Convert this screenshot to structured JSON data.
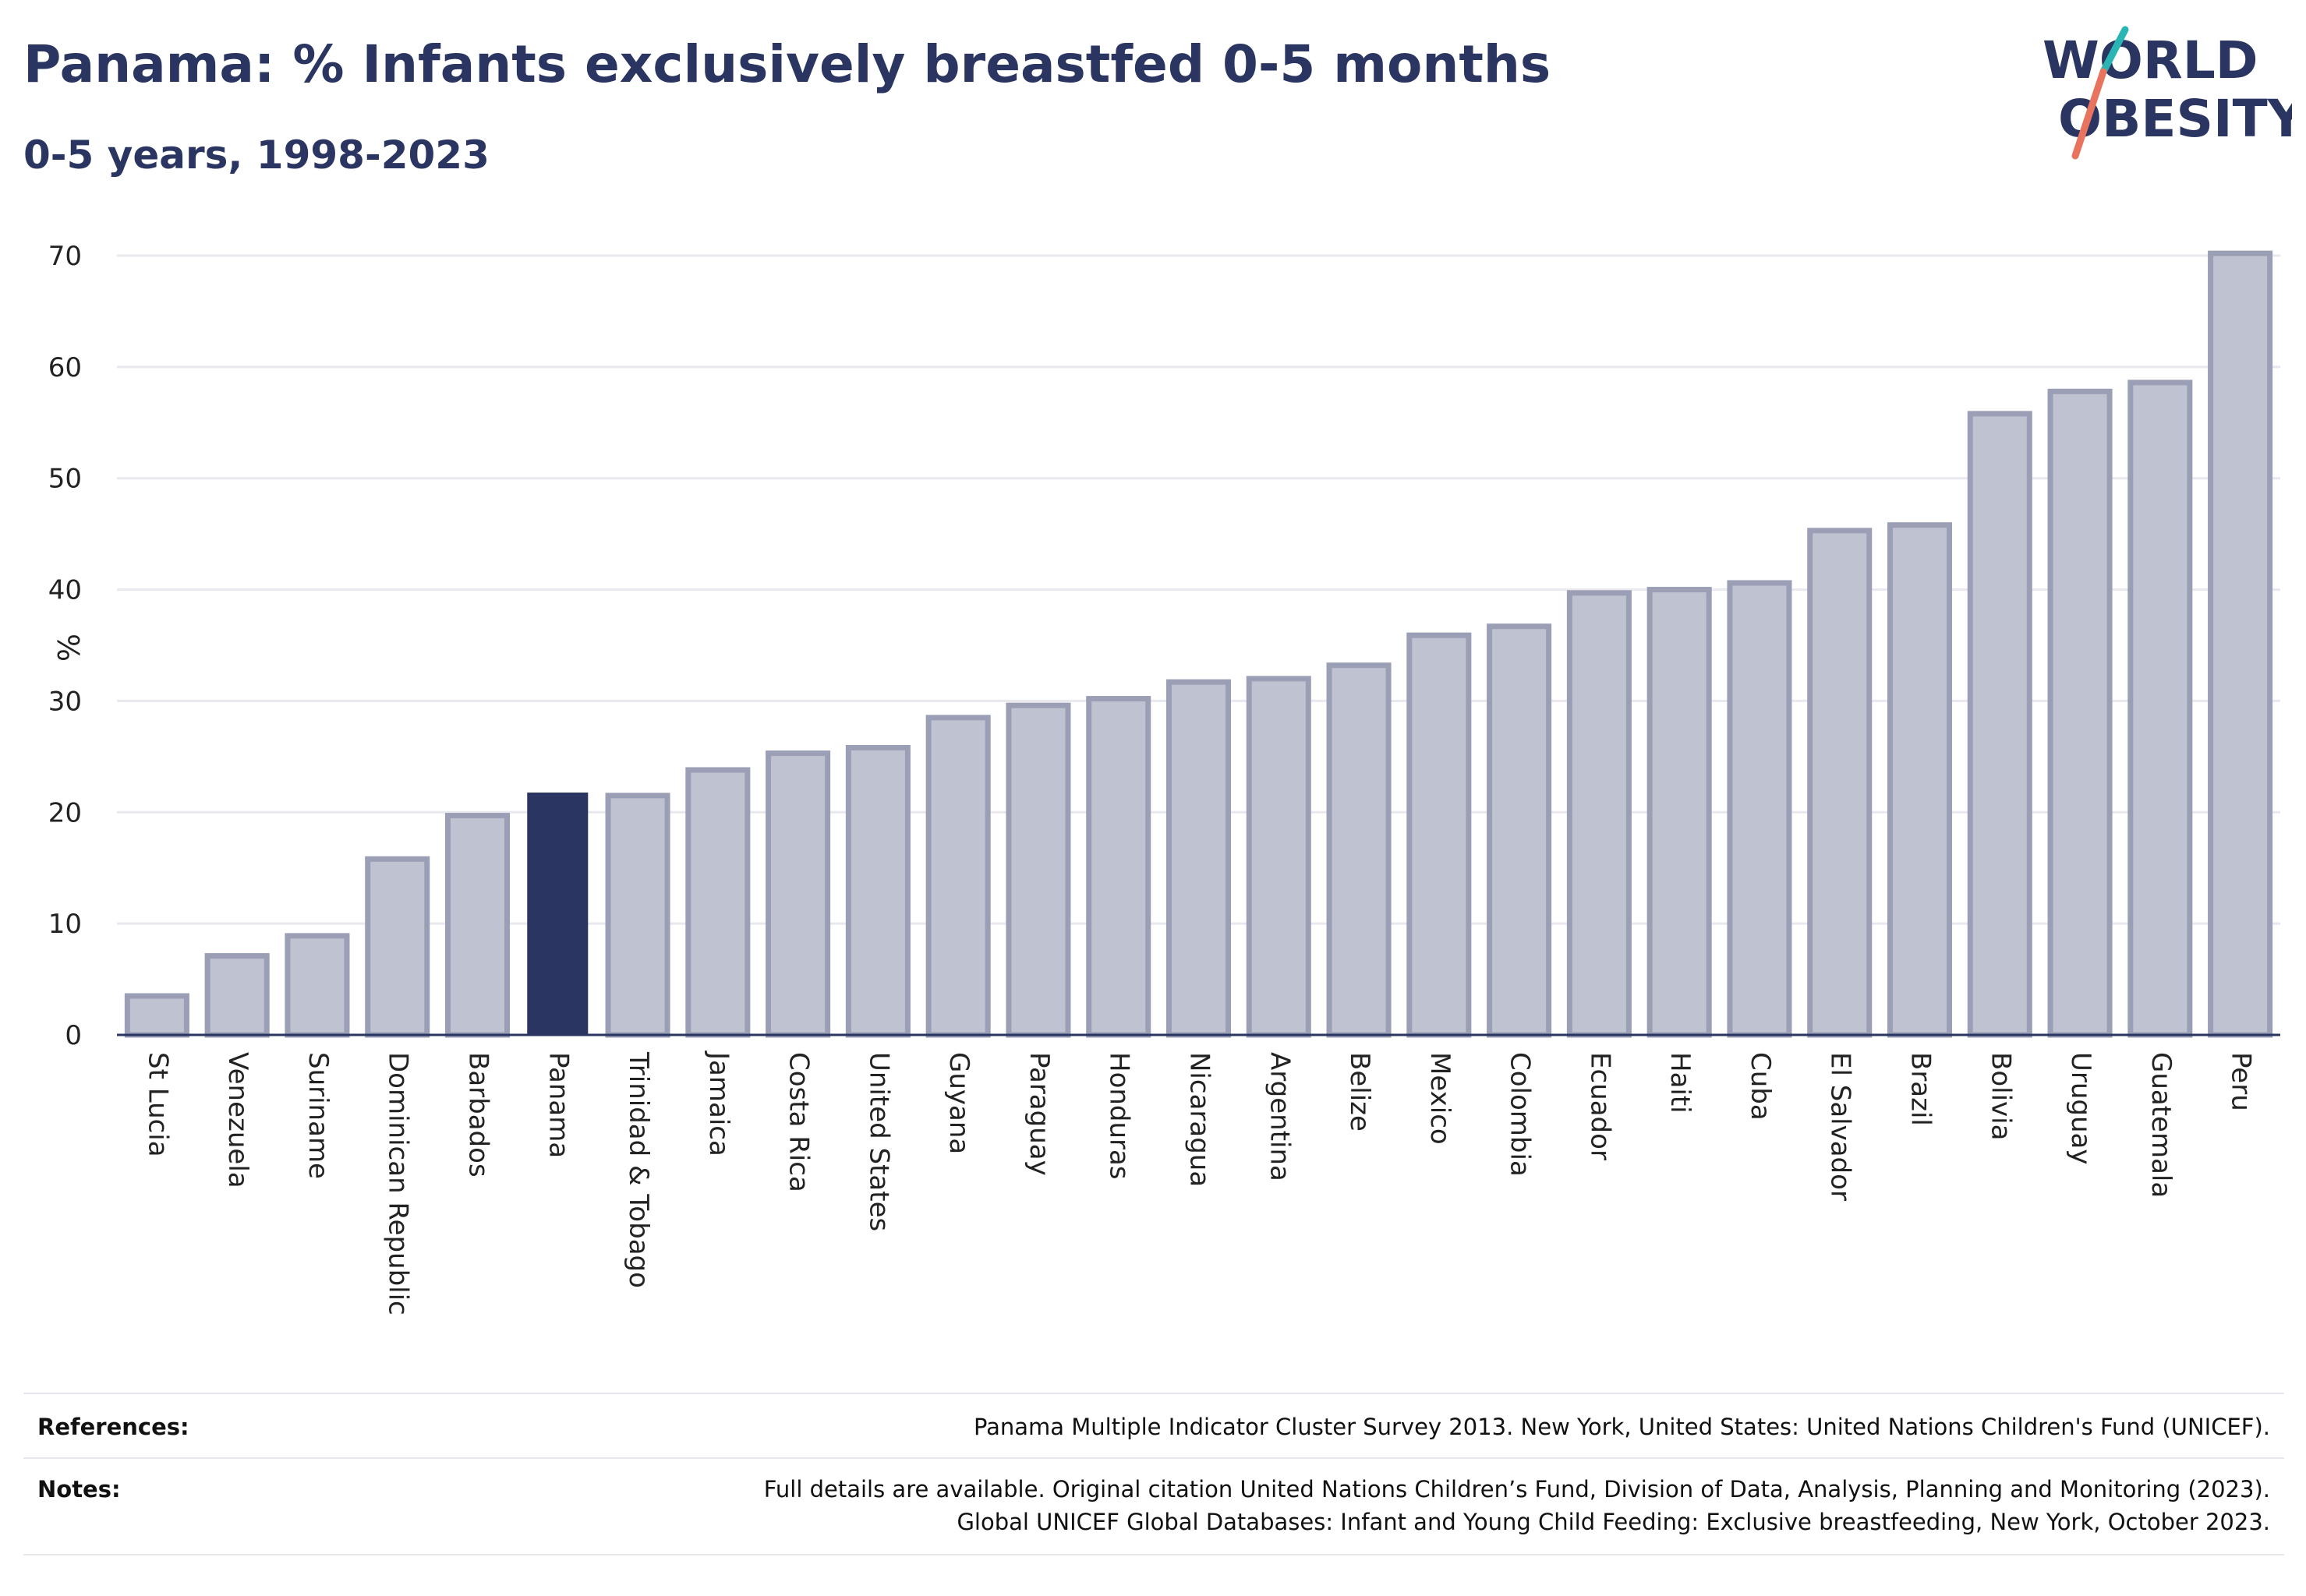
{
  "title": "Panama: % Infants exclusively breastfed 0-5 months",
  "subtitle": "0-5 years, 1998-2023",
  "logo": {
    "line1": "WORLD",
    "line2": "OBESITY"
  },
  "colors": {
    "highlight": "#2a3561",
    "bar_fill": "#bfc2d0",
    "bar_stroke": "#9a9fb6",
    "grid": "#e8e8ee",
    "logo_teal": "#2ab5b5",
    "logo_red": "#e8735f"
  },
  "chart_data": {
    "type": "bar",
    "ylabel": "%",
    "ylim": [
      0,
      70
    ],
    "yticks": [
      0,
      10,
      20,
      30,
      40,
      50,
      60,
      70
    ],
    "highlight": "Panama",
    "categories": [
      "St Lucia",
      "Venezuela",
      "Suriname",
      "Dominican Republic",
      "Barbados",
      "Panama",
      "Trinidad & Tobago",
      "Jamaica",
      "Costa Rica",
      "United States",
      "Guyana",
      "Paraguay",
      "Honduras",
      "Nicaragua",
      "Argentina",
      "Belize",
      "Mexico",
      "Colombia",
      "Ecuador",
      "Haiti",
      "Cuba",
      "El Salvador",
      "Brazil",
      "Bolivia",
      "Uruguay",
      "Guatemala",
      "Peru"
    ],
    "values": [
      3.5,
      7.1,
      8.9,
      15.8,
      19.7,
      21.7,
      21.5,
      23.8,
      25.3,
      25.8,
      28.5,
      29.6,
      30.2,
      31.7,
      32.0,
      33.2,
      35.9,
      36.7,
      39.7,
      40.0,
      40.6,
      45.3,
      45.8,
      55.8,
      57.8,
      58.6,
      70.2
    ],
    "grid": true
  },
  "footer": {
    "references_label": "References:",
    "references_text": "Panama Multiple Indicator Cluster Survey 2013. New York, United States: United Nations Children's Fund (UNICEF).",
    "notes_label": "Notes:",
    "notes_line1": "Full details are available. Original citation United Nations Children’s Fund, Division of Data, Analysis, Planning and Monitoring (2023).",
    "notes_line2": "Global UNICEF Global Databases: Infant and Young Child Feeding: Exclusive breastfeeding, New York, October 2023."
  }
}
